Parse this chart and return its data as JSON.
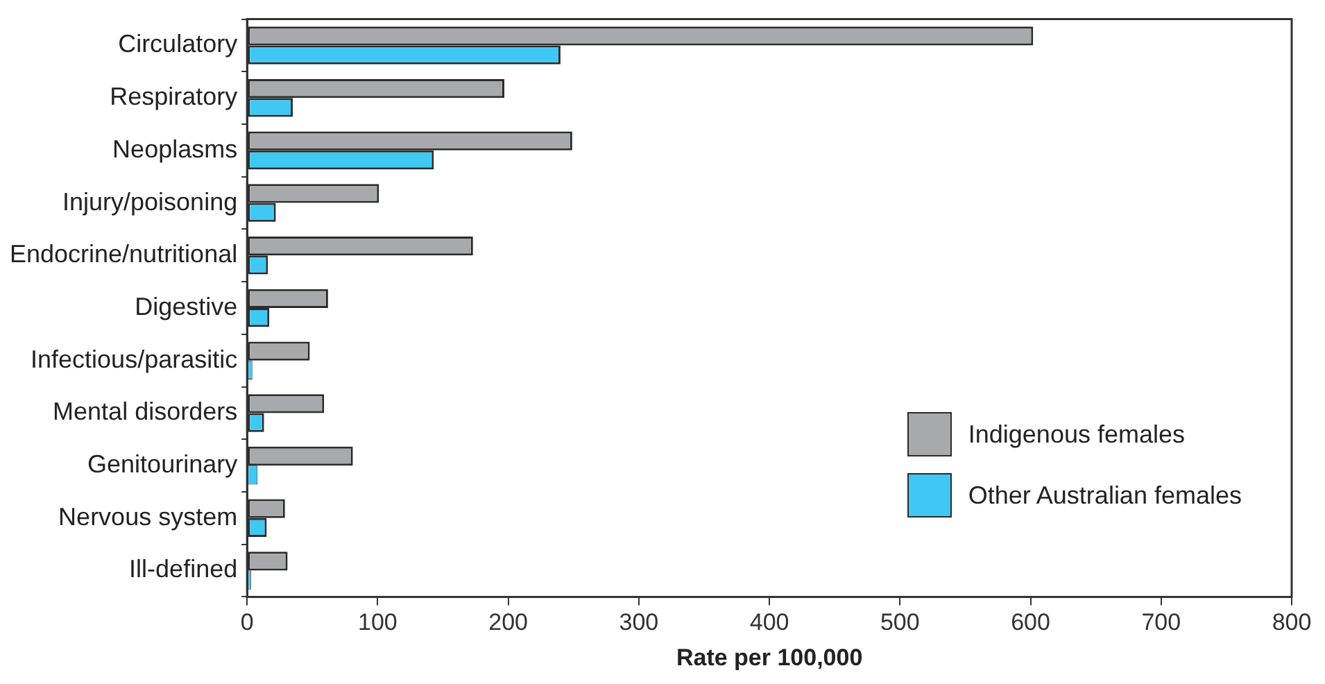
{
  "chart_data": {
    "type": "bar",
    "orientation": "horizontal",
    "xlabel": "Rate per 100,000",
    "categories": [
      "Circulatory",
      "Respiratory",
      "Neoplasms",
      "Injury/poisoning",
      "Endocrine/nutritional",
      "Digestive",
      "Infectious/parasitic",
      "Mental disorders",
      "Genitourinary",
      "Nervous system",
      "Ill-defined"
    ],
    "series": [
      {
        "name": "Indigenous females",
        "color": "#a7a9ac",
        "values": [
          602,
          197,
          249,
          101,
          173,
          62,
          48,
          59,
          81,
          29,
          31
        ]
      },
      {
        "name": "Other Australian females",
        "color": "#40c8f4",
        "values": [
          240,
          35,
          143,
          22,
          16,
          17,
          4,
          13,
          8,
          15,
          3
        ]
      }
    ],
    "xlim": [
      0,
      800
    ],
    "xticks": [
      0,
      100,
      200,
      300,
      400,
      500,
      600,
      700,
      800
    ],
    "grid": false,
    "legend": "bottom right"
  }
}
